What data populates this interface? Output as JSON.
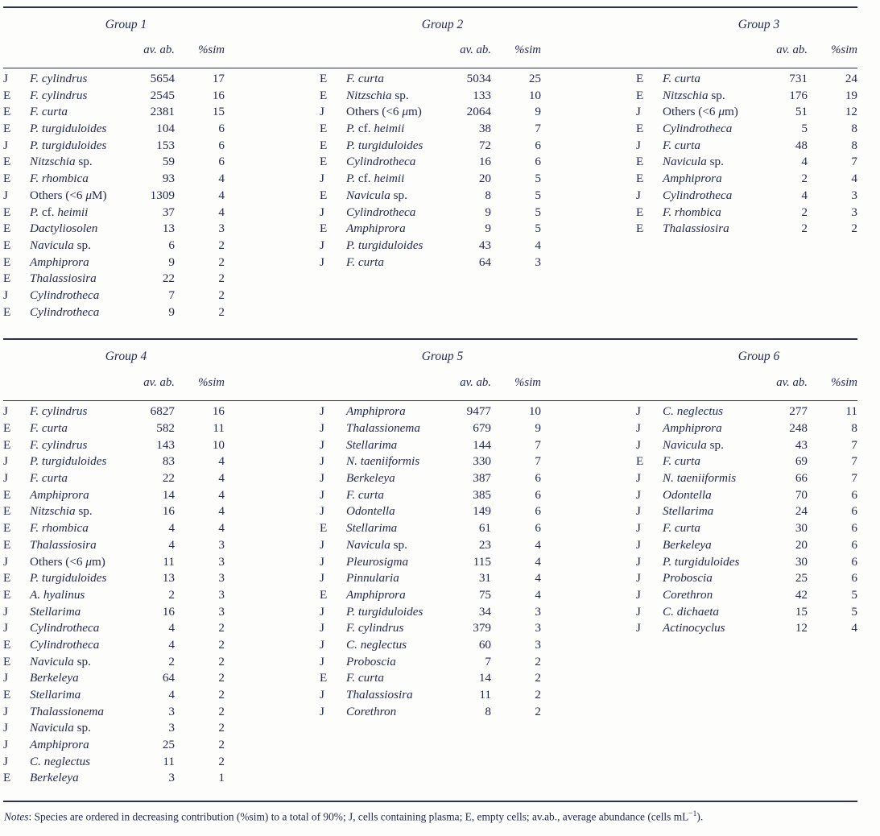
{
  "columns": {
    "avab": "av. ab.",
    "sim": "%sim"
  },
  "groups": [
    {
      "title": "Group 1",
      "rows": [
        {
          "f": "J",
          "n": [
            [
              "F. cylindrus",
              1
            ]
          ],
          "ab": "5654",
          "s": "17"
        },
        {
          "f": "E",
          "n": [
            [
              "F. cylindrus",
              1
            ]
          ],
          "ab": "2545",
          "s": "16"
        },
        {
          "f": "E",
          "n": [
            [
              "F. curta",
              1
            ]
          ],
          "ab": "2381",
          "s": "15"
        },
        {
          "f": "E",
          "n": [
            [
              "P. turgiduloides",
              1
            ]
          ],
          "ab": "104",
          "s": "6"
        },
        {
          "f": "J",
          "n": [
            [
              "P. turgiduloides",
              1
            ]
          ],
          "ab": "153",
          "s": "6"
        },
        {
          "f": "E",
          "n": [
            [
              "Nitzschia",
              1
            ],
            [
              " sp.",
              0
            ]
          ],
          "ab": "59",
          "s": "6"
        },
        {
          "f": "E",
          "n": [
            [
              "F. rhombica",
              1
            ]
          ],
          "ab": "93",
          "s": "4"
        },
        {
          "f": "J",
          "n": [
            [
              "Others (<6 ",
              0
            ],
            [
              "μ",
              1
            ],
            [
              "M)",
              0
            ]
          ],
          "ab": "1309",
          "s": "4"
        },
        {
          "f": "E",
          "n": [
            [
              "P.",
              1
            ],
            [
              " cf. ",
              0
            ],
            [
              "heimii",
              1
            ]
          ],
          "ab": "37",
          "s": "4"
        },
        {
          "f": "E",
          "n": [
            [
              "Dactyliosolen",
              1
            ]
          ],
          "ab": "13",
          "s": "3"
        },
        {
          "f": "E",
          "n": [
            [
              "Navicula",
              1
            ],
            [
              " sp.",
              0
            ]
          ],
          "ab": "6",
          "s": "2"
        },
        {
          "f": "E",
          "n": [
            [
              "Amphiprora",
              1
            ]
          ],
          "ab": "9",
          "s": "2"
        },
        {
          "f": "E",
          "n": [
            [
              "Thalassiosira",
              1
            ]
          ],
          "ab": "22",
          "s": "2"
        },
        {
          "f": "J",
          "n": [
            [
              "Cylindrotheca",
              1
            ]
          ],
          "ab": "7",
          "s": "2"
        },
        {
          "f": "E",
          "n": [
            [
              "Cylindrotheca",
              1
            ]
          ],
          "ab": "9",
          "s": "2"
        }
      ]
    },
    {
      "title": "Group 2",
      "rows": [
        {
          "f": "E",
          "n": [
            [
              "F. curta",
              1
            ]
          ],
          "ab": "5034",
          "s": "25"
        },
        {
          "f": "E",
          "n": [
            [
              "Nitzschia",
              1
            ],
            [
              " sp.",
              0
            ]
          ],
          "ab": "133",
          "s": "10"
        },
        {
          "f": "J",
          "n": [
            [
              "Others (<6 ",
              0
            ],
            [
              "μ",
              1
            ],
            [
              "m)",
              0
            ]
          ],
          "ab": "2064",
          "s": "9"
        },
        {
          "f": "E",
          "n": [
            [
              "P.",
              1
            ],
            [
              " cf. ",
              0
            ],
            [
              "heimii",
              1
            ]
          ],
          "ab": "38",
          "s": "7"
        },
        {
          "f": "E",
          "n": [
            [
              "P. turgiduloides",
              1
            ]
          ],
          "ab": "72",
          "s": "6"
        },
        {
          "f": "E",
          "n": [
            [
              "Cylindrotheca",
              1
            ]
          ],
          "ab": "16",
          "s": "6"
        },
        {
          "f": "J",
          "n": [
            [
              "P.",
              1
            ],
            [
              " cf. ",
              0
            ],
            [
              "heimii",
              1
            ]
          ],
          "ab": "20",
          "s": "5"
        },
        {
          "f": "E",
          "n": [
            [
              "Navicula",
              1
            ],
            [
              " sp.",
              0
            ]
          ],
          "ab": "8",
          "s": "5"
        },
        {
          "f": "J",
          "n": [
            [
              "Cylindrotheca",
              1
            ]
          ],
          "ab": "9",
          "s": "5"
        },
        {
          "f": "E",
          "n": [
            [
              "Amphiprora",
              1
            ]
          ],
          "ab": "9",
          "s": "5"
        },
        {
          "f": "J",
          "n": [
            [
              "P. turgiduloides",
              1
            ]
          ],
          "ab": "43",
          "s": "4"
        },
        {
          "f": "J",
          "n": [
            [
              "F. curta",
              1
            ]
          ],
          "ab": "64",
          "s": "3"
        }
      ]
    },
    {
      "title": "Group 3",
      "rows": [
        {
          "f": "E",
          "n": [
            [
              "F. curta",
              1
            ]
          ],
          "ab": "731",
          "s": "24"
        },
        {
          "f": "E",
          "n": [
            [
              "Nitzschia",
              1
            ],
            [
              " sp.",
              0
            ]
          ],
          "ab": "176",
          "s": "19"
        },
        {
          "f": "J",
          "n": [
            [
              "Others (<6 ",
              0
            ],
            [
              "μ",
              1
            ],
            [
              "m)",
              0
            ]
          ],
          "ab": "51",
          "s": "12"
        },
        {
          "f": "E",
          "n": [
            [
              "Cylindrotheca",
              1
            ]
          ],
          "ab": "5",
          "s": "8"
        },
        {
          "f": "J",
          "n": [
            [
              "F. curta",
              1
            ]
          ],
          "ab": "48",
          "s": "8"
        },
        {
          "f": "E",
          "n": [
            [
              "Navicula",
              1
            ],
            [
              " sp.",
              0
            ]
          ],
          "ab": "4",
          "s": "7"
        },
        {
          "f": "E",
          "n": [
            [
              "Amphiprora",
              1
            ]
          ],
          "ab": "2",
          "s": "4"
        },
        {
          "f": "J",
          "n": [
            [
              "Cylindrotheca",
              1
            ]
          ],
          "ab": "4",
          "s": "3"
        },
        {
          "f": "E",
          "n": [
            [
              "F. rhombica",
              1
            ]
          ],
          "ab": "2",
          "s": "3"
        },
        {
          "f": "E",
          "n": [
            [
              "Thalassiosira",
              1
            ]
          ],
          "ab": "2",
          "s": "2"
        }
      ]
    },
    {
      "title": "Group 4",
      "rows": [
        {
          "f": "J",
          "n": [
            [
              "F. cylindrus",
              1
            ]
          ],
          "ab": "6827",
          "s": "16"
        },
        {
          "f": "E",
          "n": [
            [
              "F. curta",
              1
            ]
          ],
          "ab": "582",
          "s": "11"
        },
        {
          "f": "E",
          "n": [
            [
              "F. cylindrus",
              1
            ]
          ],
          "ab": "143",
          "s": "10"
        },
        {
          "f": "J",
          "n": [
            [
              "P. turgiduloides",
              1
            ]
          ],
          "ab": "83",
          "s": "4"
        },
        {
          "f": "J",
          "n": [
            [
              "F. curta",
              1
            ]
          ],
          "ab": "22",
          "s": "4"
        },
        {
          "f": "E",
          "n": [
            [
              "Amphiprora",
              1
            ]
          ],
          "ab": "14",
          "s": "4"
        },
        {
          "f": "E",
          "n": [
            [
              "Nitzschia",
              1
            ],
            [
              " sp.",
              0
            ]
          ],
          "ab": "16",
          "s": "4"
        },
        {
          "f": "E",
          "n": [
            [
              "F. rhombica",
              1
            ]
          ],
          "ab": "4",
          "s": "4"
        },
        {
          "f": "E",
          "n": [
            [
              "Thalassiosira",
              1
            ]
          ],
          "ab": "4",
          "s": "3"
        },
        {
          "f": "J",
          "n": [
            [
              "Others (<6 ",
              0
            ],
            [
              "μ",
              1
            ],
            [
              "m)",
              0
            ]
          ],
          "ab": "11",
          "s": "3"
        },
        {
          "f": "E",
          "n": [
            [
              "P. turgiduloides",
              1
            ]
          ],
          "ab": "13",
          "s": "3"
        },
        {
          "f": "E",
          "n": [
            [
              "A. hyalinus",
              1
            ]
          ],
          "ab": "2",
          "s": "3"
        },
        {
          "f": "J",
          "n": [
            [
              "Stellarima",
              1
            ]
          ],
          "ab": "16",
          "s": "3"
        },
        {
          "f": "J",
          "n": [
            [
              "Cylindrotheca",
              1
            ]
          ],
          "ab": "4",
          "s": "2"
        },
        {
          "f": "E",
          "n": [
            [
              "Cylindrotheca",
              1
            ]
          ],
          "ab": "4",
          "s": "2"
        },
        {
          "f": "E",
          "n": [
            [
              "Navicula",
              1
            ],
            [
              " sp.",
              0
            ]
          ],
          "ab": "2",
          "s": "2"
        },
        {
          "f": "J",
          "n": [
            [
              "Berkeleya",
              1
            ]
          ],
          "ab": "64",
          "s": "2"
        },
        {
          "f": "E",
          "n": [
            [
              "Stellarima",
              1
            ]
          ],
          "ab": "4",
          "s": "2"
        },
        {
          "f": "J",
          "n": [
            [
              "Thalassionema",
              1
            ]
          ],
          "ab": "3",
          "s": "2"
        },
        {
          "f": "J",
          "n": [
            [
              "Navicula",
              1
            ],
            [
              " sp.",
              0
            ]
          ],
          "ab": "3",
          "s": "2"
        },
        {
          "f": "J",
          "n": [
            [
              "Amphiprora",
              1
            ]
          ],
          "ab": "25",
          "s": "2"
        },
        {
          "f": "J",
          "n": [
            [
              "C. neglectus",
              1
            ]
          ],
          "ab": "11",
          "s": "2"
        },
        {
          "f": "E",
          "n": [
            [
              "Berkeleya",
              1
            ]
          ],
          "ab": "3",
          "s": "1"
        }
      ]
    },
    {
      "title": "Group 5",
      "rows": [
        {
          "f": "J",
          "n": [
            [
              "Amphiprora",
              1
            ]
          ],
          "ab": "9477",
          "s": "10"
        },
        {
          "f": "J",
          "n": [
            [
              "Thalassionema",
              1
            ]
          ],
          "ab": "679",
          "s": "9"
        },
        {
          "f": "J",
          "n": [
            [
              "Stellarima",
              1
            ]
          ],
          "ab": "144",
          "s": "7"
        },
        {
          "f": "J",
          "n": [
            [
              "N. taeniiformis",
              1
            ]
          ],
          "ab": "330",
          "s": "7"
        },
        {
          "f": "J",
          "n": [
            [
              "Berkeleya",
              1
            ]
          ],
          "ab": "387",
          "s": "6"
        },
        {
          "f": "J",
          "n": [
            [
              "F. curta",
              1
            ]
          ],
          "ab": "385",
          "s": "6"
        },
        {
          "f": "J",
          "n": [
            [
              "Odontella",
              1
            ]
          ],
          "ab": "149",
          "s": "6"
        },
        {
          "f": "E",
          "n": [
            [
              "Stellarima",
              1
            ]
          ],
          "ab": "61",
          "s": "6"
        },
        {
          "f": "J",
          "n": [
            [
              "Navicula",
              1
            ],
            [
              " sp.",
              0
            ]
          ],
          "ab": "23",
          "s": "4"
        },
        {
          "f": "J",
          "n": [
            [
              "Pleurosigma",
              1
            ]
          ],
          "ab": "115",
          "s": "4"
        },
        {
          "f": "J",
          "n": [
            [
              "Pinnularia",
              1
            ]
          ],
          "ab": "31",
          "s": "4"
        },
        {
          "f": "E",
          "n": [
            [
              "Amphiprora",
              1
            ]
          ],
          "ab": "75",
          "s": "4"
        },
        {
          "f": "J",
          "n": [
            [
              "P. turgiduloides",
              1
            ]
          ],
          "ab": "34",
          "s": "3"
        },
        {
          "f": "J",
          "n": [
            [
              "F. cylindrus",
              1
            ]
          ],
          "ab": "379",
          "s": "3"
        },
        {
          "f": "J",
          "n": [
            [
              "C. neglectus",
              1
            ]
          ],
          "ab": "60",
          "s": "3"
        },
        {
          "f": "J",
          "n": [
            [
              "Proboscia",
              1
            ]
          ],
          "ab": "7",
          "s": "2"
        },
        {
          "f": "E",
          "n": [
            [
              "F. curta",
              1
            ]
          ],
          "ab": "14",
          "s": "2"
        },
        {
          "f": "J",
          "n": [
            [
              "Thalassiosira",
              1
            ]
          ],
          "ab": "11",
          "s": "2"
        },
        {
          "f": "J",
          "n": [
            [
              "Corethron",
              1
            ]
          ],
          "ab": "8",
          "s": "2"
        }
      ]
    },
    {
      "title": "Group 6",
      "rows": [
        {
          "f": "J",
          "n": [
            [
              "C. neglectus",
              1
            ]
          ],
          "ab": "277",
          "s": "11"
        },
        {
          "f": "J",
          "n": [
            [
              "Amphiprora",
              1
            ]
          ],
          "ab": "248",
          "s": "8"
        },
        {
          "f": "J",
          "n": [
            [
              "Navicula",
              1
            ],
            [
              " sp.",
              0
            ]
          ],
          "ab": "43",
          "s": "7"
        },
        {
          "f": "E",
          "n": [
            [
              "F. curta",
              1
            ]
          ],
          "ab": "69",
          "s": "7"
        },
        {
          "f": "J",
          "n": [
            [
              "N. taeniiformis",
              1
            ]
          ],
          "ab": "66",
          "s": "7"
        },
        {
          "f": "J",
          "n": [
            [
              "Odontella",
              1
            ]
          ],
          "ab": "70",
          "s": "6"
        },
        {
          "f": "J",
          "n": [
            [
              "Stellarima",
              1
            ]
          ],
          "ab": "24",
          "s": "6"
        },
        {
          "f": "J",
          "n": [
            [
              "F. curta",
              1
            ]
          ],
          "ab": "30",
          "s": "6"
        },
        {
          "f": "J",
          "n": [
            [
              "Berkeleya",
              1
            ]
          ],
          "ab": "20",
          "s": "6"
        },
        {
          "f": "J",
          "n": [
            [
              "P. turgiduloides",
              1
            ]
          ],
          "ab": "30",
          "s": "6"
        },
        {
          "f": "J",
          "n": [
            [
              "Proboscia",
              1
            ]
          ],
          "ab": "25",
          "s": "6"
        },
        {
          "f": "J",
          "n": [
            [
              "Corethron",
              1
            ]
          ],
          "ab": "42",
          "s": "5"
        },
        {
          "f": "J",
          "n": [
            [
              "C. dichaeta",
              1
            ]
          ],
          "ab": "15",
          "s": "5"
        },
        {
          "f": "J",
          "n": [
            [
              "Actinocyclus",
              1
            ]
          ],
          "ab": "12",
          "s": "4"
        }
      ]
    }
  ],
  "notes": {
    "label": "Notes",
    "body": ": Species are ordered in decreasing contribution (%sim) to a total of 90%; J, cells containing plasma; E, empty cells; av.ab., average abundance (cells mL",
    "sup": "−1",
    "end": ")."
  }
}
